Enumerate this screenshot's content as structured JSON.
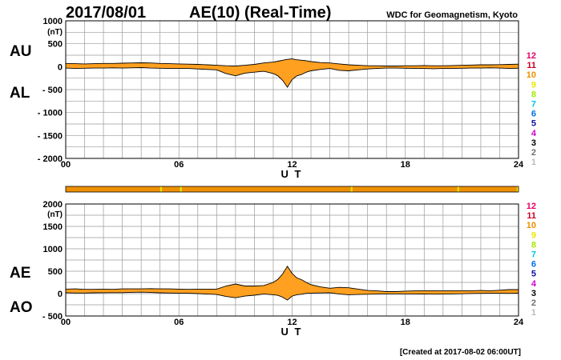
{
  "header": {
    "date": "2017/08/01",
    "title": "AE(10) (Real-Time)",
    "source": "WDC for Geomagnetism, Kyoto"
  },
  "footer": {
    "created": "[Created at 2017-08-02 06:00UT]"
  },
  "colors": {
    "fill": "#ffa020",
    "outline": "#000000",
    "grid": "#9a9a9a"
  },
  "chart_data": [
    {
      "type": "area",
      "name": "AU-AL panel",
      "labels": {
        "upper": "AU",
        "lower": "AL"
      },
      "ylim": [
        -2000,
        1000
      ],
      "yticks": [
        {
          "value": 1000,
          "label": "1000"
        },
        {
          "value": 500,
          "label": "500"
        },
        {
          "value": 0,
          "label": "0"
        },
        {
          "value": -500,
          "label": "- 500"
        },
        {
          "value": -1000,
          "label": "- 1000"
        },
        {
          "value": -1500,
          "label": "- 1500"
        },
        {
          "value": -2000,
          "label": "- 2000"
        }
      ],
      "unit": "(nT)",
      "xlim": [
        0,
        24
      ],
      "xticks": [
        "00",
        "06",
        "12",
        "18",
        "24"
      ],
      "xlabel": "U T",
      "grid": true,
      "x": [
        0,
        0.5,
        1,
        1.5,
        2,
        2.5,
        3,
        3.5,
        4,
        4.5,
        5,
        5.5,
        6,
        6.5,
        7,
        7.5,
        8,
        8.5,
        9,
        9.5,
        10,
        10.5,
        11,
        11.25,
        11.5,
        11.75,
        12,
        12.25,
        12.5,
        12.75,
        13,
        13.5,
        14,
        14.5,
        15,
        15.5,
        16,
        16.5,
        17,
        17.5,
        18,
        18.5,
        19,
        19.5,
        20,
        20.5,
        21,
        21.5,
        22,
        22.5,
        23,
        23.5,
        24
      ],
      "series": [
        {
          "name": "AU",
          "values": [
            70,
            65,
            60,
            65,
            70,
            70,
            75,
            80,
            85,
            80,
            70,
            65,
            60,
            55,
            50,
            40,
            30,
            20,
            15,
            30,
            50,
            80,
            100,
            120,
            140,
            160,
            170,
            150,
            140,
            130,
            110,
            90,
            80,
            60,
            40,
            30,
            20,
            20,
            15,
            15,
            20,
            20,
            25,
            20,
            20,
            25,
            30,
            35,
            40,
            40,
            45,
            50,
            55
          ]
        },
        {
          "name": "AL",
          "values": [
            -30,
            -40,
            -35,
            -30,
            -30,
            -25,
            -30,
            -25,
            -20,
            -30,
            -35,
            -40,
            -40,
            -40,
            -50,
            -60,
            -70,
            -150,
            -200,
            -140,
            -120,
            -100,
            -150,
            -200,
            -300,
            -450,
            -280,
            -200,
            -170,
            -120,
            -90,
            -60,
            -40,
            -80,
            -90,
            -70,
            -50,
            -40,
            -30,
            -30,
            -35,
            -40,
            -40,
            -45,
            -40,
            -40,
            -35,
            -30,
            -30,
            -25,
            -30,
            -40,
            -35
          ]
        }
      ]
    },
    {
      "type": "area",
      "name": "AE-AO panel",
      "labels": {
        "upper": "AE",
        "lower": "AO"
      },
      "ylim": [
        -500,
        2000
      ],
      "yticks": [
        {
          "value": 2000,
          "label": "2000"
        },
        {
          "value": 1500,
          "label": "1500"
        },
        {
          "value": 1000,
          "label": "1000"
        },
        {
          "value": 500,
          "label": "500"
        },
        {
          "value": 0,
          "label": "0"
        },
        {
          "value": -500,
          "label": "- 500"
        }
      ],
      "unit": "(nT)",
      "xlim": [
        0,
        24
      ],
      "xticks": [
        "00",
        "06",
        "12",
        "18",
        "24"
      ],
      "xlabel": "U T",
      "grid": true,
      "x": [
        0,
        0.5,
        1,
        1.5,
        2,
        2.5,
        3,
        3.5,
        4,
        4.5,
        5,
        5.5,
        6,
        6.5,
        7,
        7.5,
        8,
        8.5,
        9,
        9.5,
        10,
        10.5,
        11,
        11.25,
        11.5,
        11.75,
        12,
        12.25,
        12.5,
        12.75,
        13,
        13.5,
        14,
        14.5,
        15,
        15.5,
        16,
        16.5,
        17,
        17.5,
        18,
        18.5,
        19,
        19.5,
        20,
        20.5,
        21,
        21.5,
        22,
        22.5,
        23,
        23.5,
        24
      ],
      "series": [
        {
          "name": "AE",
          "values": [
            100,
            105,
            95,
            95,
            100,
            95,
            105,
            105,
            105,
            110,
            105,
            105,
            100,
            95,
            100,
            100,
            100,
            170,
            215,
            170,
            170,
            180,
            250,
            320,
            440,
            610,
            450,
            350,
            310,
            250,
            200,
            150,
            120,
            140,
            130,
            100,
            70,
            60,
            45,
            45,
            55,
            60,
            65,
            65,
            60,
            65,
            65,
            65,
            70,
            65,
            75,
            90,
            90
          ]
        },
        {
          "name": "AO",
          "values": [
            20,
            12,
            12,
            18,
            20,
            22,
            22,
            28,
            32,
            25,
            18,
            12,
            10,
            8,
            0,
            -10,
            -20,
            -65,
            -92,
            -55,
            -35,
            -10,
            -25,
            -40,
            -80,
            -145,
            -55,
            -25,
            -15,
            5,
            10,
            15,
            20,
            -10,
            -25,
            -20,
            -15,
            -10,
            -8,
            -8,
            -8,
            -10,
            -8,
            -12,
            -10,
            -8,
            -3,
            3,
            5,
            8,
            8,
            5,
            10
          ]
        }
      ]
    }
  ],
  "station_legend": {
    "items": [
      {
        "label": "12",
        "color": "#e8006a"
      },
      {
        "label": "11",
        "color": "#c8002a"
      },
      {
        "label": "10",
        "color": "#ee9000"
      },
      {
        "label": "9",
        "color": "#e8e800"
      },
      {
        "label": "8",
        "color": "#a8e800"
      },
      {
        "label": "7",
        "color": "#00c8e0"
      },
      {
        "label": "6",
        "color": "#0070e8"
      },
      {
        "label": "5",
        "color": "#1010a0"
      },
      {
        "label": "4",
        "color": "#d000d0"
      },
      {
        "label": "3",
        "color": "#000000"
      },
      {
        "label": "2",
        "color": "#707070"
      },
      {
        "label": "1",
        "color": "#bbbbbb"
      }
    ]
  },
  "station_count_bar": {
    "colors": {
      "main": "#ee9000",
      "marker": "#e8e800"
    },
    "segments": [
      {
        "start": 0,
        "end": 24,
        "count": 10
      }
    ],
    "markers_hours": [
      5.05,
      6.1,
      15.15,
      20.8,
      23.95
    ]
  }
}
